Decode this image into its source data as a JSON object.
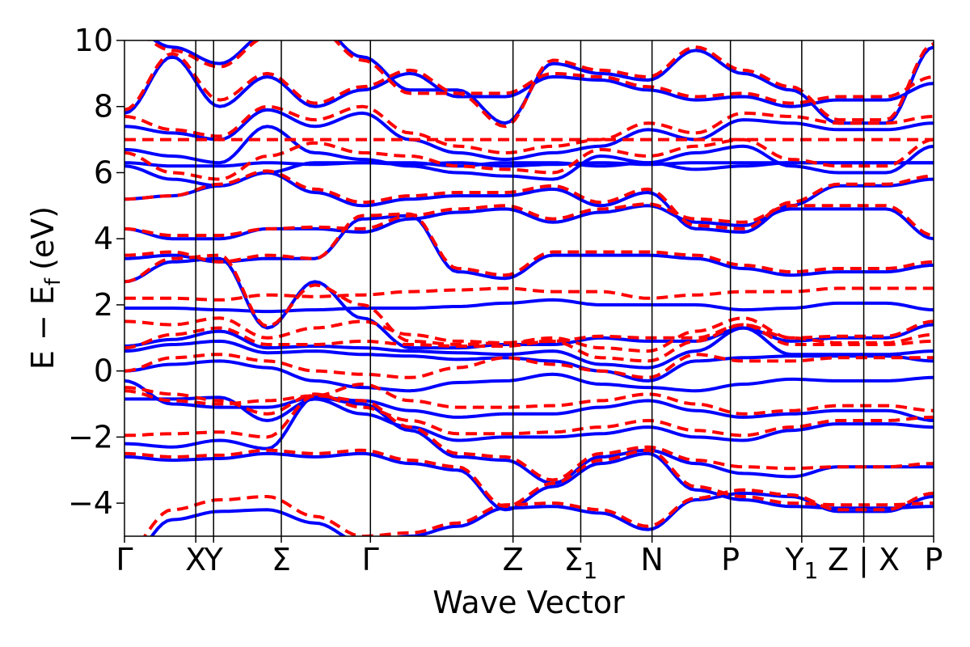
{
  "chart_data": {
    "type": "line",
    "title": "",
    "xlabel": "Wave Vector",
    "ylabel": "E − E",
    "ylabel_subscript": "f",
    "ylabel_unit": "(eV)",
    "ylim": [
      -5,
      10
    ],
    "xlim": [
      0,
      10
    ],
    "yticks": [
      -4,
      -2,
      0,
      2,
      4,
      6,
      8,
      10
    ],
    "ytick_labels": [
      "−4",
      "−2",
      "0",
      "2",
      "4",
      "6",
      "8",
      "10"
    ],
    "high_symmetry_points": [
      {
        "label": "Γ",
        "x": 0.0,
        "separator": false
      },
      {
        "label": "X",
        "x": 1.0,
        "separator": false
      },
      {
        "label": "Y",
        "x": 1.25,
        "separator": false
      },
      {
        "label": "Σ",
        "x": 2.2,
        "separator": false
      },
      {
        "label": "Γ",
        "x": 3.45,
        "separator": false
      },
      {
        "label": "Z",
        "x": 5.45,
        "separator": false
      },
      {
        "label": "Σ",
        "label_sub": "1",
        "x": 6.4,
        "separator": false
      },
      {
        "label": "N",
        "x": 7.4,
        "separator": false
      },
      {
        "label": "P",
        "x": 8.5,
        "separator": false
      },
      {
        "label": "Y",
        "label_sub": "1",
        "x": 9.5,
        "separator": false
      },
      {
        "label": "Z | X",
        "x": 10.37,
        "separator": true
      },
      {
        "label": "P",
        "x": 11.35,
        "separator": false
      }
    ],
    "series_style": [
      {
        "color": "#0000ff",
        "dash": "solid"
      },
      {
        "color": "#ff0000",
        "dash": "dashed"
      }
    ],
    "series": [
      {
        "style": 0,
        "bands": [
          [
            -5.8,
            -4.5,
            -4.25,
            -4.2,
            -4.6,
            -5.2,
            -5.0,
            -4.7,
            -4.15,
            -4.1,
            -4.3,
            -4.8,
            -3.9,
            -3.7,
            -3.8,
            -4.25,
            -4.25,
            -3.8
          ],
          [
            -2.6,
            -2.7,
            -2.65,
            -2.5,
            -2.6,
            -2.5,
            -2.8,
            -3.0,
            -4.2,
            -3.5,
            -2.8,
            -2.5,
            -3.6,
            -3.9,
            -4.1,
            -4.15,
            -4.15,
            -4.1
          ],
          [
            -2.2,
            -2.3,
            -2.1,
            -2.35,
            -0.8,
            -1.0,
            -1.8,
            -2.6,
            -2.7,
            -3.4,
            -2.6,
            -2.4,
            -2.8,
            -3.1,
            -3.2,
            -2.9,
            -2.9,
            -2.9
          ],
          [
            -0.85,
            -0.85,
            -0.8,
            -1.5,
            -0.85,
            -1.3,
            -1.7,
            -2.1,
            -2.0,
            -2.0,
            -1.9,
            -1.7,
            -2.0,
            -2.1,
            -1.8,
            -1.6,
            -1.6,
            -1.7
          ],
          [
            -0.3,
            -1.0,
            -1.1,
            -1.1,
            -0.8,
            -0.9,
            -1.2,
            -1.4,
            -1.3,
            -1.3,
            -1.1,
            -0.9,
            -1.2,
            -1.4,
            -1.3,
            -1.2,
            -1.2,
            -1.5
          ],
          [
            0.0,
            0.2,
            0.3,
            0.1,
            -0.3,
            -0.5,
            -0.6,
            -0.35,
            -0.3,
            -0.1,
            -0.4,
            -0.5,
            -0.6,
            -0.4,
            -0.25,
            -0.3,
            -0.3,
            -0.2
          ],
          [
            0.6,
            0.8,
            0.9,
            0.55,
            0.6,
            0.5,
            0.45,
            0.35,
            0.4,
            0.3,
            0.0,
            -0.3,
            0.3,
            0.4,
            0.45,
            0.45,
            0.45,
            0.3
          ],
          [
            0.75,
            0.95,
            1.2,
            0.7,
            0.75,
            0.7,
            0.6,
            0.55,
            0.5,
            0.6,
            0.2,
            0.1,
            0.6,
            1.3,
            0.5,
            0.5,
            0.5,
            0.6
          ],
          [
            1.9,
            1.9,
            1.85,
            1.8,
            1.85,
            1.9,
            1.9,
            1.95,
            2.05,
            2.15,
            2.0,
            2.0,
            2.0,
            1.85,
            1.9,
            2.05,
            2.05,
            1.85
          ],
          [
            2.7,
            3.3,
            3.4,
            1.3,
            2.7,
            1.6,
            0.7,
            0.7,
            0.8,
            0.8,
            1.0,
            0.9,
            0.9,
            1.3,
            0.9,
            1.0,
            1.0,
            1.4
          ],
          [
            3.4,
            3.5,
            3.3,
            3.4,
            3.4,
            4.6,
            4.7,
            3.0,
            2.8,
            3.5,
            3.5,
            3.5,
            3.4,
            3.1,
            2.9,
            3.0,
            3.0,
            3.2
          ],
          [
            4.3,
            4.0,
            4.0,
            4.3,
            4.3,
            4.2,
            4.6,
            4.8,
            4.9,
            4.5,
            4.8,
            5.0,
            4.5,
            4.4,
            4.9,
            4.9,
            4.9,
            4.0
          ],
          [
            5.2,
            5.3,
            5.6,
            6.0,
            5.4,
            5.0,
            5.2,
            5.3,
            5.3,
            5.5,
            5.0,
            5.4,
            4.3,
            4.2,
            5.0,
            5.6,
            5.6,
            5.8
          ],
          [
            6.2,
            5.8,
            5.6,
            6.0,
            6.3,
            6.3,
            6.3,
            6.2,
            6.3,
            6.3,
            6.2,
            6.3,
            6.1,
            6.2,
            6.3,
            6.3,
            6.3,
            6.3
          ],
          [
            6.3,
            6.2,
            6.2,
            6.3,
            6.25,
            6.3,
            6.25,
            6.3,
            6.2,
            6.25,
            6.3,
            6.25,
            6.3,
            6.3,
            6.3,
            6.3,
            6.3,
            6.3
          ],
          [
            6.7,
            6.5,
            6.3,
            7.4,
            6.6,
            6.4,
            6.2,
            6.0,
            5.9,
            5.8,
            6.5,
            6.3,
            6.6,
            6.8,
            6.2,
            6.0,
            6.0,
            6.8
          ],
          [
            7.4,
            7.2,
            7.0,
            7.9,
            7.4,
            7.8,
            7.0,
            6.6,
            6.4,
            6.6,
            6.8,
            7.3,
            7.0,
            7.6,
            7.5,
            7.3,
            7.3,
            7.5
          ],
          [
            7.8,
            9.5,
            8.0,
            8.9,
            8.0,
            8.5,
            9.0,
            8.3,
            8.3,
            8.9,
            8.8,
            8.5,
            8.2,
            8.3,
            8.0,
            8.2,
            8.2,
            8.7
          ],
          [
            10.5,
            9.8,
            9.3,
            10.2,
            10.5,
            9.5,
            8.5,
            8.5,
            7.5,
            9.3,
            9.0,
            8.8,
            9.7,
            9.0,
            8.5,
            7.5,
            7.5,
            9.8
          ]
        ]
      },
      {
        "style": 1,
        "bands": [
          [
            -5.5,
            -4.2,
            -3.9,
            -3.8,
            -4.4,
            -5.0,
            -4.9,
            -4.6,
            -4.05,
            -4.0,
            -4.2,
            -4.7,
            -3.85,
            -3.6,
            -3.75,
            -4.2,
            -4.2,
            -3.7
          ],
          [
            -2.5,
            -2.6,
            -2.55,
            -2.4,
            -2.5,
            -2.4,
            -2.7,
            -2.9,
            -4.1,
            -3.4,
            -2.7,
            -2.4,
            -3.5,
            -3.8,
            -4.0,
            -4.05,
            -4.05,
            -4.0
          ],
          [
            -1.95,
            -1.9,
            -1.85,
            -2.0,
            -0.75,
            -0.9,
            -1.7,
            -2.5,
            -2.6,
            -3.3,
            -2.5,
            -2.3,
            -2.7,
            -2.9,
            -2.95,
            -2.9,
            -2.9,
            -2.8
          ],
          [
            -0.5,
            -0.7,
            -0.9,
            -1.3,
            -0.7,
            -1.1,
            -1.5,
            -1.9,
            -1.9,
            -1.85,
            -1.7,
            -1.5,
            -1.8,
            -1.95,
            -1.7,
            -1.5,
            -1.5,
            -1.4
          ],
          [
            -0.6,
            -0.9,
            -1.0,
            -0.9,
            -0.75,
            -0.4,
            -0.9,
            -1.1,
            -1.1,
            -1.05,
            -0.9,
            -0.7,
            -1.0,
            -1.3,
            -1.2,
            -1.05,
            -1.05,
            -1.2
          ],
          [
            0.0,
            0.4,
            0.5,
            0.3,
            0.0,
            -0.1,
            -0.2,
            0.1,
            0.4,
            0.2,
            0.0,
            -0.2,
            0.5,
            0.3,
            0.3,
            0.4,
            0.4,
            0.4
          ],
          [
            0.7,
            1.1,
            1.3,
            0.8,
            0.8,
            0.9,
            0.8,
            0.75,
            0.75,
            0.9,
            0.4,
            0.3,
            0.9,
            1.4,
            0.8,
            0.8,
            0.8,
            0.9
          ],
          [
            1.5,
            1.4,
            1.6,
            1.0,
            1.3,
            1.5,
            1.1,
            0.9,
            0.85,
            1.0,
            0.7,
            0.6,
            1.2,
            1.6,
            1.0,
            0.85,
            0.85,
            1.1
          ],
          [
            2.2,
            2.2,
            2.15,
            2.3,
            2.25,
            2.3,
            2.4,
            2.45,
            2.5,
            2.4,
            2.4,
            2.2,
            2.3,
            2.4,
            2.4,
            2.5,
            2.5,
            2.5
          ],
          [
            2.7,
            3.4,
            3.5,
            1.35,
            2.6,
            2.0,
            0.9,
            0.8,
            0.85,
            0.9,
            1.05,
            1.0,
            1.0,
            1.4,
            1.0,
            1.05,
            1.05,
            1.5
          ],
          [
            3.5,
            3.6,
            3.3,
            3.5,
            3.4,
            4.7,
            4.75,
            3.1,
            2.9,
            3.6,
            3.6,
            3.6,
            3.5,
            3.2,
            3.0,
            3.1,
            3.1,
            3.3
          ],
          [
            4.3,
            4.1,
            4.1,
            4.3,
            4.35,
            4.3,
            4.7,
            4.9,
            5.0,
            4.6,
            4.9,
            5.05,
            4.6,
            4.5,
            5.0,
            5.0,
            5.0,
            4.1
          ],
          [
            5.2,
            5.3,
            5.65,
            6.05,
            5.5,
            5.1,
            5.3,
            5.4,
            5.4,
            5.6,
            5.1,
            5.5,
            4.4,
            4.3,
            5.1,
            5.65,
            5.65,
            5.9
          ],
          [
            7.0,
            7.0,
            7.0,
            7.0,
            7.0,
            7.0,
            7.0,
            7.0,
            7.0,
            7.0,
            7.0,
            7.0,
            7.0,
            7.0,
            7.0,
            7.0,
            7.0,
            7.0
          ],
          [
            6.6,
            6.0,
            5.8,
            6.5,
            6.9,
            6.6,
            6.5,
            6.2,
            6.1,
            6.0,
            6.7,
            6.5,
            6.8,
            7.0,
            6.4,
            6.2,
            6.2,
            7.0
          ],
          [
            7.7,
            7.3,
            7.1,
            8.0,
            7.6,
            8.0,
            7.2,
            6.8,
            6.6,
            6.8,
            7.0,
            7.5,
            7.2,
            7.8,
            7.7,
            7.5,
            7.5,
            7.7
          ],
          [
            7.9,
            9.6,
            8.2,
            9.0,
            8.1,
            8.6,
            9.1,
            8.4,
            8.4,
            9.0,
            8.9,
            8.6,
            8.3,
            8.4,
            8.1,
            8.3,
            8.3,
            8.9
          ],
          [
            10.4,
            9.7,
            9.2,
            10.1,
            10.4,
            9.4,
            8.4,
            8.4,
            7.4,
            9.4,
            9.1,
            8.9,
            9.8,
            9.1,
            8.6,
            7.6,
            7.6,
            9.9
          ]
        ]
      }
    ]
  }
}
